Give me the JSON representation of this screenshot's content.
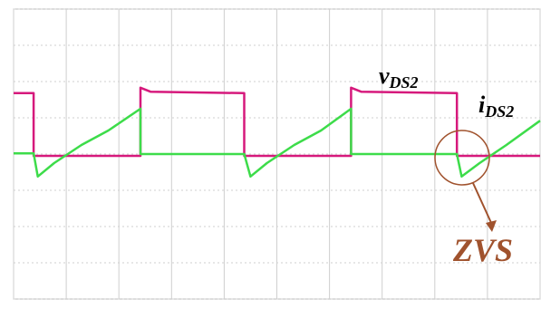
{
  "chart_data": {
    "type": "line",
    "xlim": [
      0,
      10
    ],
    "ylim": [
      -4,
      4
    ],
    "xticks": [
      0,
      1,
      2,
      3,
      4,
      5,
      6,
      7,
      8,
      9,
      10
    ],
    "yticks": [
      -4,
      -3,
      -2,
      -1,
      0,
      1,
      2,
      3,
      4
    ],
    "grid": true,
    "series": [
      {
        "color": "#d6197c",
        "x": [
          0,
          0.38,
          0.38,
          2.41,
          2.41,
          2.6,
          4.38,
          4.38,
          6.41,
          6.41,
          6.6,
          8.42,
          8.42,
          10
        ],
        "values": [
          1.68,
          1.68,
          -0.05,
          -0.05,
          1.83,
          1.72,
          1.68,
          -0.05,
          -0.05,
          1.83,
          1.72,
          1.68,
          -0.05,
          -0.05
        ]
      },
      {
        "color": "#3ddc4a",
        "x": [
          0,
          0.38,
          0.46,
          0.77,
          1.29,
          1.8,
          2.41,
          2.41,
          4.38,
          4.5,
          4.81,
          5.33,
          5.84,
          6.41,
          6.41,
          8.42,
          8.51,
          8.85,
          9.36,
          10
        ],
        "values": [
          0.02,
          0.02,
          -0.62,
          -0.25,
          0.25,
          0.65,
          1.25,
          0,
          0,
          -0.62,
          -0.25,
          0.25,
          0.65,
          1.25,
          0,
          0,
          -0.62,
          -0.25,
          0.25,
          0.92
        ]
      }
    ],
    "annotations": [
      {
        "main": "v",
        "sub": "DS2"
      },
      {
        "main": "i",
        "sub": "DS2"
      },
      {
        "main": "ZVS"
      }
    ]
  }
}
